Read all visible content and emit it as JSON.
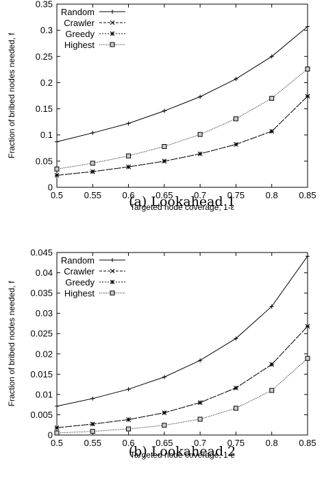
{
  "chart_data": [
    {
      "type": "line",
      "caption": "(a) Lookahead 1",
      "xlabel": "Targeted node coverage, 1-ε",
      "ylabel": "Fraction of bribed nodes needed, f",
      "xlim": [
        0.5,
        0.85
      ],
      "ylim": [
        0,
        0.35
      ],
      "xticks": [
        "0.5",
        "0.55",
        "0.6",
        "0.65",
        "0.7",
        "0.75",
        "0.8",
        "0.85"
      ],
      "yticks": [
        "0",
        "0.05",
        "0.1",
        "0.15",
        "0.2",
        "0.25",
        "0.3",
        "0.35"
      ],
      "grid": false,
      "legend_position": "top-left",
      "x": [
        0.5,
        0.55,
        0.6,
        0.65,
        0.7,
        0.75,
        0.8,
        0.85
      ],
      "series": [
        {
          "name": "Random",
          "line": "solid",
          "marker": "plus",
          "values": [
            0.087,
            0.104,
            0.122,
            0.146,
            0.173,
            0.207,
            0.25,
            0.307
          ]
        },
        {
          "name": "Crawler",
          "line": "dashed",
          "marker": "cross",
          "values": [
            0.023,
            0.03,
            0.039,
            0.05,
            0.064,
            0.082,
            0.107,
            0.174
          ]
        },
        {
          "name": "Greedy",
          "line": "dotted",
          "marker": "star",
          "values": [
            0.023,
            0.03,
            0.039,
            0.05,
            0.064,
            0.082,
            0.107,
            0.174
          ]
        },
        {
          "name": "Highest",
          "line": "finedot",
          "marker": "square",
          "values": [
            0.035,
            0.046,
            0.06,
            0.078,
            0.101,
            0.131,
            0.17,
            0.226
          ]
        }
      ]
    },
    {
      "type": "line",
      "caption": "(b) Lookahead 2",
      "xlabel": "Targeted node coverage, 1-ε",
      "ylabel": "Fraction of bribed nodes needed, f",
      "xlim": [
        0.5,
        0.85
      ],
      "ylim": [
        0,
        0.045
      ],
      "xticks": [
        "0.5",
        "0.55",
        "0.6",
        "0.65",
        "0.7",
        "0.75",
        "0.8",
        "0.85"
      ],
      "yticks": [
        "0",
        "0.005",
        "0.01",
        "0.015",
        "0.02",
        "0.025",
        "0.03",
        "0.035",
        "0.04",
        "0.045"
      ],
      "grid": false,
      "legend_position": "top-left",
      "x": [
        0.5,
        0.55,
        0.6,
        0.65,
        0.7,
        0.75,
        0.8,
        0.85
      ],
      "series": [
        {
          "name": "Random",
          "line": "solid",
          "marker": "plus",
          "values": [
            0.0071,
            0.009,
            0.0113,
            0.0143,
            0.0184,
            0.0238,
            0.0317,
            0.0441
          ]
        },
        {
          "name": "Crawler",
          "line": "dashed",
          "marker": "cross",
          "values": [
            0.0018,
            0.0027,
            0.0038,
            0.0055,
            0.008,
            0.0116,
            0.0174,
            0.0268
          ]
        },
        {
          "name": "Greedy",
          "line": "dotted",
          "marker": "star",
          "values": [
            0.0018,
            0.0027,
            0.0038,
            0.0055,
            0.008,
            0.0116,
            0.0174,
            0.0268
          ]
        },
        {
          "name": "Highest",
          "line": "finedot",
          "marker": "square",
          "values": [
            0.0005,
            0.0009,
            0.0015,
            0.0024,
            0.0039,
            0.0066,
            0.011,
            0.0189
          ]
        }
      ]
    }
  ]
}
